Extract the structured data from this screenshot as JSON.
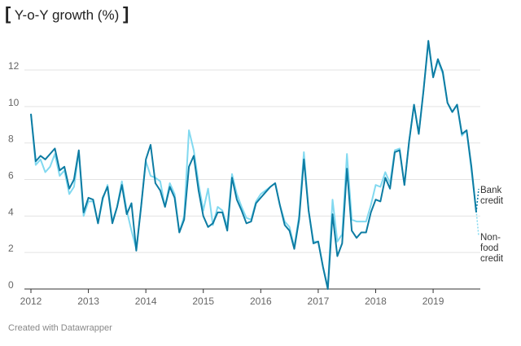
{
  "chart_data": {
    "type": "line",
    "title": "Y-o-Y growth (%)",
    "source": "Created with Datawrapper",
    "x": [
      2012,
      2012.083,
      2012.167,
      2012.25,
      2012.333,
      2012.417,
      2012.5,
      2012.583,
      2012.667,
      2012.75,
      2012.833,
      2012.917,
      2013,
      2013.083,
      2013.167,
      2013.25,
      2013.333,
      2013.417,
      2013.5,
      2013.583,
      2013.667,
      2013.75,
      2013.833,
      2013.917,
      2014,
      2014.083,
      2014.167,
      2014.25,
      2014.333,
      2014.417,
      2014.5,
      2014.583,
      2014.667,
      2014.75,
      2014.833,
      2014.917,
      2015,
      2015.083,
      2015.167,
      2015.25,
      2015.333,
      2015.417,
      2015.5,
      2015.583,
      2015.667,
      2015.75,
      2015.833,
      2015.917,
      2016,
      2016.083,
      2016.167,
      2016.25,
      2016.333,
      2016.417,
      2016.5,
      2016.583,
      2016.667,
      2016.75,
      2016.833,
      2016.917,
      2017,
      2017.083,
      2017.167,
      2017.25,
      2017.333,
      2017.417,
      2017.5,
      2017.583,
      2017.667,
      2017.75,
      2017.833,
      2017.917,
      2018,
      2018.083,
      2018.167,
      2018.25,
      2018.333,
      2018.417,
      2018.5,
      2018.583,
      2018.667,
      2018.75,
      2018.833,
      2018.917,
      2019,
      2019.083,
      2019.167,
      2019.25,
      2019.333,
      2019.417,
      2019.5,
      2019.583,
      2019.667,
      2019.75
    ],
    "series": [
      {
        "name": "Non-food credit",
        "color": "#82d9f0",
        "values": [
          9.6,
          6.8,
          7.1,
          6.4,
          6.7,
          7.4,
          6.2,
          6.5,
          5.2,
          5.6,
          7.5,
          4.0,
          4.8,
          4.8,
          3.6,
          4.9,
          5.7,
          3.7,
          4.5,
          5.9,
          4.3,
          3.2,
          2.2,
          4.5,
          7.0,
          6.2,
          6.1,
          5.9,
          4.5,
          5.8,
          5.2,
          3.1,
          4.0,
          8.7,
          7.6,
          5.8,
          4.3,
          5.5,
          3.5,
          4.5,
          4.3,
          3.4,
          6.3,
          5.2,
          4.5,
          3.9,
          3.8,
          4.8,
          5.2,
          5.4,
          5.6,
          5.8,
          4.6,
          3.7,
          3.4,
          2.3,
          4.0,
          7.5,
          4.3,
          2.6,
          2.6,
          1.2,
          0.1,
          4.9,
          2.6,
          3.0,
          7.4,
          3.8,
          3.7,
          3.7,
          3.7,
          4.6,
          5.7,
          5.6,
          6.4,
          5.8,
          7.6,
          7.7,
          5.7,
          8.1,
          10.1,
          8.5,
          10.9,
          13.5,
          11.6,
          12.5,
          11.8,
          10.2,
          9.7,
          10.1,
          8.4,
          8.7,
          6.5,
          4.3
        ]
      },
      {
        "name": "Bank credit",
        "color": "#0d7ca3",
        "values": [
          9.6,
          7.0,
          7.3,
          7.1,
          7.4,
          7.7,
          6.5,
          6.7,
          5.5,
          6.0,
          7.6,
          4.2,
          5.0,
          4.9,
          3.6,
          5.0,
          5.6,
          3.6,
          4.5,
          5.7,
          4.1,
          4.7,
          2.1,
          4.5,
          7.1,
          7.9,
          5.8,
          5.4,
          4.5,
          5.6,
          5.0,
          3.1,
          3.8,
          6.7,
          7.3,
          5.4,
          4.0,
          3.4,
          3.6,
          4.2,
          4.2,
          3.2,
          6.1,
          4.9,
          4.3,
          3.6,
          3.7,
          4.7,
          5.0,
          5.3,
          5.6,
          5.8,
          4.6,
          3.5,
          3.2,
          2.2,
          3.8,
          7.1,
          4.3,
          2.5,
          2.6,
          1.2,
          0.0,
          4.1,
          1.8,
          2.5,
          6.6,
          3.2,
          2.8,
          3.1,
          3.1,
          4.2,
          4.9,
          4.8,
          6.1,
          5.5,
          7.5,
          7.6,
          5.7,
          8.1,
          10.1,
          8.5,
          10.9,
          13.6,
          11.6,
          12.6,
          11.9,
          10.2,
          9.7,
          10.1,
          8.5,
          8.7,
          6.7,
          4.2
        ]
      }
    ],
    "xlim": [
      2012,
      2019.75
    ],
    "xticks": [
      2012,
      2013,
      2014,
      2015,
      2016,
      2017,
      2018,
      2019
    ],
    "ylim": [
      0,
      12
    ],
    "yticks": [
      0,
      2,
      4,
      6,
      8,
      10,
      12
    ],
    "grid": true
  }
}
